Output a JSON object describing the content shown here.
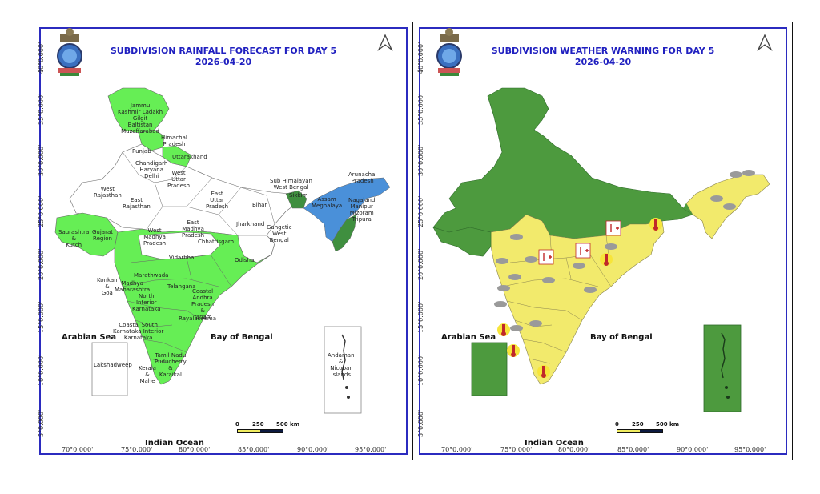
{
  "left_panel": {
    "title_line1": "SUBDIVISION RAINFALL FORECAST FOR DAY 5",
    "title_line2": "2026-04-20",
    "sea_labels": {
      "arabian": "Arabian Sea",
      "bay": "Bay of Bengal",
      "indian": "Indian Ocean"
    },
    "inset_lakshadweep": "Lakshadweep",
    "inset_andaman": "Andaman\n&\nNicobar\nIslands",
    "subdivision_labels": [
      {
        "text": "Jammu\nKashmir Ladakh\nGilgit\nBaltistan\nMuzaffarabad"
      },
      {
        "text": "Himachal\nPradesh"
      },
      {
        "text": "Punjab"
      },
      {
        "text": "Uttarakhand"
      },
      {
        "text": "Chandigarh\nHaryana\nDelhi"
      },
      {
        "text": "West\nUttar\nPradesh"
      },
      {
        "text": "West\nRajasthan"
      },
      {
        "text": "East\nRajasthan"
      },
      {
        "text": "East\nUttar\nPradesh"
      },
      {
        "text": "Bihar"
      },
      {
        "text": "Sub Himalayan\nWest Bengal"
      },
      {
        "text": "Sikkim"
      },
      {
        "text": "Arunachal\nPradesh"
      },
      {
        "text": "Assam\nMeghalaya"
      },
      {
        "text": "Nagaland\nManipur\nMizoram\nTripura"
      },
      {
        "text": "Saurashtra\n&\nKutch"
      },
      {
        "text": "Gujarat\nRegion"
      },
      {
        "text": "West\nMadhya\nPradesh"
      },
      {
        "text": "East\nMadhya\nPradesh"
      },
      {
        "text": "Jharkhand"
      },
      {
        "text": "Gangetic\nWest\nBengal"
      },
      {
        "text": "Chhattisgarh"
      },
      {
        "text": "Odisha"
      },
      {
        "text": "Vidarbha"
      },
      {
        "text": "Marathwada"
      },
      {
        "text": "Konkan\n&\nGoa"
      },
      {
        "text": "Madhya\nMaharashtra"
      },
      {
        "text": "Telangana"
      },
      {
        "text": "North\nInterior\nKarnataka"
      },
      {
        "text": "Coastal\nAndhra\nPradesh\n&\nYanam"
      },
      {
        "text": "Rayalaseema"
      },
      {
        "text": "Coastal South\nKarnataka Interior\nKarnataka"
      },
      {
        "text": "Tamil Nadu\nPuducherry\n&\nKaraikal"
      },
      {
        "text": "Kerala\n&\nMahe"
      }
    ],
    "scale": {
      "zero": "0",
      "mid": "250",
      "end": "500 km"
    }
  },
  "right_panel": {
    "title_line1": "SUBDIVISION WEATHER WARNING FOR DAY 5",
    "title_line2": "2026-04-20",
    "sea_labels": {
      "arabian": "Arabian Sea",
      "bay": "Bay of Bengal",
      "indian": "Indian Ocean"
    },
    "scale": {
      "zero": "0",
      "mid": "250",
      "end": "500 km"
    }
  },
  "y_axis_labels": [
    "40°0.000'",
    "35°0.000'",
    "30°0.000'",
    "25°0.000'",
    "20°0.000'",
    "15°0.000'",
    "10°0.000'",
    "5°0.000'"
  ],
  "x_axis_labels": [
    "70°0.000'",
    "75°0.000'",
    "80°0.000'",
    "85°0.000'",
    "90°0.000'",
    "95°0.000'"
  ],
  "colors": {
    "frame": "#2b2bbf",
    "title": "#2020c0",
    "forecast_green": "#66ee55",
    "forecast_blue": "#4a90d9",
    "forecast_dark": "#3f8f3f",
    "warning_green": "#4d9a3e",
    "warning_yellow": "#f2ea6c",
    "scale_yellow": "#f0ec60",
    "scale_dark": "#0d1a40"
  },
  "icons": {
    "emblem": "state-emblem-icon",
    "north_arrow": "north-arrow-icon",
    "thunderstorm": "thunderstorm-cloud-icon",
    "heatwave": "thermometer-icon",
    "hot_humid": "temperature-up-icon"
  }
}
